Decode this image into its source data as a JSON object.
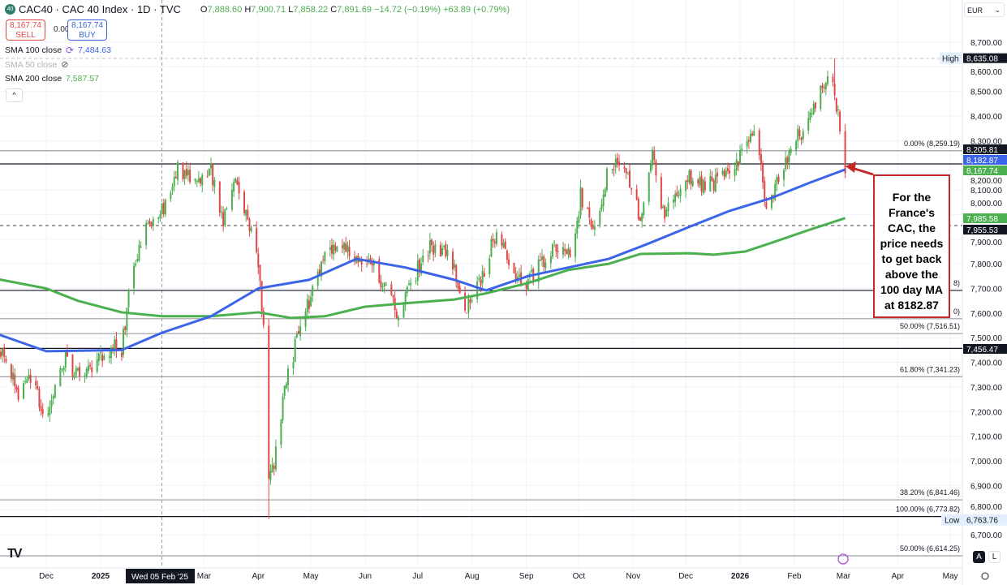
{
  "header": {
    "logo_text": "40",
    "title": "CAC40 · CAC 40 Index · 1D · TVC",
    "open_label": "O",
    "open": "7,888.60",
    "high_label": "H",
    "high": "7,900.71",
    "low_label": "L",
    "low": "7,858.22",
    "close_label": "C",
    "close": "7,891.69",
    "change": "−14.72 (−0.19%)",
    "change2": "+63.89 (+0.79%)"
  },
  "trade": {
    "sell_price": "8,167.74",
    "sell_label": "SELL",
    "spread": "0.00",
    "buy_price": "8,167.74",
    "buy_label": "BUY"
  },
  "indicators": [
    {
      "label": "SMA 100 close",
      "value": "7,484.63",
      "color": "#3c64e8",
      "icon": "sync-icon"
    },
    {
      "label": "SMA 50 close",
      "value": "",
      "color": "#b0b3bb",
      "icon": "eye-hidden-icon"
    },
    {
      "label": "SMA 200 close",
      "value": "7,587.57",
      "color": "#4caf50",
      "icon": ""
    }
  ],
  "collapse_glyph": "^",
  "currency": {
    "label": "EUR",
    "caret": "⌄"
  },
  "annotation": "For the France's CAC, the price needs to get back above the 100 day MA at 8182.87",
  "toolbar": {
    "auto_label": "A",
    "log_label": "L"
  },
  "tv_logo": "TV",
  "crosshair_date": "Wed 05 Feb '25",
  "chart_data": {
    "type": "candlestick",
    "title": "CAC40 · CAC 40 Index · 1D · TVC",
    "ylim": [
      6600,
      8780
    ],
    "grid": true,
    "y_ticks": [
      "8,700.00",
      "8,600.00",
      "8,500.00",
      "8,400.00",
      "8,300.00",
      "8,200.00",
      "8,100.00",
      "8,000.00",
      "7,900.00",
      "7,800.00",
      "7,700.00",
      "7,600.00",
      "7,500.00",
      "7,400.00",
      "7,300.00",
      "7,200.00",
      "7,100.00",
      "7,000.00",
      "6,900.00",
      "6,800.00",
      "6,700.00"
    ],
    "y_tick_values": [
      8700,
      8600,
      8500,
      8400,
      8300,
      8200,
      8100,
      8000,
      7900,
      7800,
      7700,
      7600,
      7500,
      7400,
      7300,
      7200,
      7100,
      7000,
      6900,
      6800,
      6700
    ],
    "x_ticks": [
      {
        "label": "Dec",
        "date": "2024-12-01",
        "bold": false
      },
      {
        "label": "2025",
        "date": "2025-01-01",
        "bold": true
      },
      {
        "label": "Mar",
        "date": "2025-03-01",
        "bold": false
      },
      {
        "label": "Apr",
        "date": "2025-04-01",
        "bold": false
      },
      {
        "label": "May",
        "date": "2025-05-01",
        "bold": false
      },
      {
        "label": "Jun",
        "date": "2025-06-01",
        "bold": false
      },
      {
        "label": "Jul",
        "date": "2025-07-01",
        "bold": false
      },
      {
        "label": "Aug",
        "date": "2025-08-01",
        "bold": false
      },
      {
        "label": "Sep",
        "date": "2025-09-01",
        "bold": false
      },
      {
        "label": "Oct",
        "date": "2025-10-01",
        "bold": false
      },
      {
        "label": "Nov",
        "date": "2025-11-01",
        "bold": false
      },
      {
        "label": "Dec",
        "date": "2025-12-01",
        "bold": false
      },
      {
        "label": "2026",
        "date": "2026-01-01",
        "bold": true
      },
      {
        "label": "Feb",
        "date": "2026-02-01",
        "bold": false
      },
      {
        "label": "Mar",
        "date": "2026-03-01",
        "bold": false
      },
      {
        "label": "Apr",
        "date": "2026-04-01",
        "bold": false
      },
      {
        "label": "May",
        "date": "2026-05-01",
        "bold": false
      }
    ],
    "price_path": [
      [
        "2024-11-05",
        7440
      ],
      [
        "2024-11-16",
        7257
      ],
      [
        "2024-11-23",
        7350
      ],
      [
        "2024-11-30",
        7158
      ],
      [
        "2024-12-05",
        7250
      ],
      [
        "2024-12-12",
        7420
      ],
      [
        "2024-12-21",
        7320
      ],
      [
        "2024-12-30",
        7420
      ],
      [
        "2025-01-08",
        7470
      ],
      [
        "2025-01-13",
        7450
      ],
      [
        "2025-01-18",
        7720
      ],
      [
        "2025-01-25",
        7915
      ],
      [
        "2025-02-05",
        8015
      ],
      [
        "2025-02-14",
        8180
      ],
      [
        "2025-02-24",
        8130
      ],
      [
        "2025-03-05",
        8180
      ],
      [
        "2025-03-12",
        7980
      ],
      [
        "2025-03-19",
        8150
      ],
      [
        "2025-03-26",
        7980
      ],
      [
        "2025-04-01",
        7785
      ],
      [
        "2025-04-04",
        7555
      ],
      [
        "2025-04-07",
        6895
      ],
      [
        "2025-04-11",
        7030
      ],
      [
        "2025-04-16",
        7290
      ],
      [
        "2025-04-23",
        7490
      ],
      [
        "2025-04-30",
        7650
      ],
      [
        "2025-05-09",
        7820
      ],
      [
        "2025-05-16",
        7880
      ],
      [
        "2025-05-27",
        7820
      ],
      [
        "2025-06-06",
        7785
      ],
      [
        "2025-06-13",
        7690
      ],
      [
        "2025-06-20",
        7585
      ],
      [
        "2025-06-29",
        7750
      ],
      [
        "2025-07-08",
        7880
      ],
      [
        "2025-07-20",
        7820
      ],
      [
        "2025-07-29",
        7620
      ],
      [
        "2025-08-05",
        7720
      ],
      [
        "2025-08-16",
        7950
      ],
      [
        "2025-08-23",
        7750
      ],
      [
        "2025-09-02",
        7720
      ],
      [
        "2025-09-11",
        7820
      ],
      [
        "2025-09-20",
        7880
      ],
      [
        "2025-09-27",
        7820
      ],
      [
        "2025-10-02",
        8080
      ],
      [
        "2025-10-11",
        7915
      ],
      [
        "2025-10-18",
        8210
      ],
      [
        "2025-10-27",
        8180
      ],
      [
        "2025-11-05",
        7985
      ],
      [
        "2025-11-12",
        8245
      ],
      [
        "2025-11-19",
        7985
      ],
      [
        "2025-11-26",
        8080
      ],
      [
        "2025-12-03",
        8150
      ],
      [
        "2025-12-13",
        8115
      ],
      [
        "2025-12-22",
        8150
      ],
      [
        "2025-12-31",
        8230
      ],
      [
        "2026-01-09",
        8360
      ],
      [
        "2026-01-16",
        8050
      ],
      [
        "2026-01-23",
        8130
      ],
      [
        "2026-01-30",
        8280
      ],
      [
        "2026-02-08",
        8360
      ],
      [
        "2026-02-15",
        8475
      ],
      [
        "2026-02-22",
        8610
      ],
      [
        "2026-02-26",
        8395
      ],
      [
        "2026-03-02",
        8167.74
      ]
    ],
    "sma100": [
      [
        "2024-11-01",
        7520
      ],
      [
        "2024-12-01",
        7445
      ],
      [
        "2025-01-13",
        7450
      ],
      [
        "2025-02-05",
        7520
      ],
      [
        "2025-03-05",
        7587
      ],
      [
        "2025-04-01",
        7700
      ],
      [
        "2025-04-30",
        7735
      ],
      [
        "2025-05-27",
        7820
      ],
      [
        "2025-06-24",
        7785
      ],
      [
        "2025-07-22",
        7735
      ],
      [
        "2025-08-09",
        7692
      ],
      [
        "2025-09-02",
        7750
      ],
      [
        "2025-09-25",
        7785
      ],
      [
        "2025-10-18",
        7820
      ],
      [
        "2025-11-10",
        7883
      ],
      [
        "2025-12-03",
        7950
      ],
      [
        "2025-12-26",
        8015
      ],
      [
        "2026-01-18",
        8065
      ],
      [
        "2026-02-10",
        8130
      ],
      [
        "2026-03-02",
        8182.87
      ]
    ],
    "sma200": [
      [
        "2024-11-01",
        7741
      ],
      [
        "2024-12-01",
        7700
      ],
      [
        "2024-12-19",
        7650
      ],
      [
        "2025-01-13",
        7603
      ],
      [
        "2025-02-05",
        7587
      ],
      [
        "2025-03-05",
        7587
      ],
      [
        "2025-04-01",
        7603
      ],
      [
        "2025-04-20",
        7580
      ],
      [
        "2025-05-09",
        7587
      ],
      [
        "2025-06-01",
        7626
      ],
      [
        "2025-06-24",
        7640
      ],
      [
        "2025-07-22",
        7655
      ],
      [
        "2025-08-09",
        7680
      ],
      [
        "2025-09-02",
        7722
      ],
      [
        "2025-09-25",
        7775
      ],
      [
        "2025-10-18",
        7800
      ],
      [
        "2025-11-05",
        7840
      ],
      [
        "2025-12-03",
        7843
      ],
      [
        "2025-12-17",
        7837
      ],
      [
        "2026-01-04",
        7850
      ],
      [
        "2026-01-18",
        7883
      ],
      [
        "2026-02-10",
        7939
      ],
      [
        "2026-03-02",
        7985.58
      ]
    ],
    "extremes": {
      "high": {
        "date": "2026-02-24",
        "value": 8635.08,
        "label": "High",
        "price": "8,635.08"
      },
      "low": {
        "date": "2025-04-07",
        "value": 6763.76,
        "label": "Low",
        "price": "6,763.76"
      }
    },
    "levels": [
      {
        "value": 8259.19,
        "style": "gray",
        "label": "0.00% (8,259.19)"
      },
      {
        "value": 8205.81,
        "style": "black",
        "tag": "8,205.81",
        "tag_color": "#131722"
      },
      {
        "value": 7955.53,
        "style": "dashed",
        "tag": "7,955.53",
        "tag_color": "#131722"
      },
      {
        "value": 7692,
        "style": "black",
        "label": "8)"
      },
      {
        "value": 7577,
        "style": "gray",
        "label": "0)"
      },
      {
        "value": 7516.51,
        "style": "gray",
        "label": "50.00% (7,516.51)"
      },
      {
        "value": 7456.47,
        "style": "black",
        "tag": "7,456.47",
        "tag_color": "#131722"
      },
      {
        "value": 7341.23,
        "style": "gray",
        "label": "61.80% (7,341.23)"
      },
      {
        "value": 6841.46,
        "style": "gray",
        "label": "38.20% (6,841.46)"
      },
      {
        "value": 6773.82,
        "style": "black",
        "label": "100.00% (6,773.82)"
      },
      {
        "value": 6614.25,
        "style": "gray",
        "label": "50.00% (6,614.25)"
      }
    ],
    "price_tags": [
      {
        "value": 8182.87,
        "label": "8,182.87",
        "color": "#3c64e8"
      },
      {
        "value": 8167.74,
        "label": "8,167.74",
        "color": "#4caf50"
      },
      {
        "value": 7985.58,
        "label": "7,985.58",
        "color": "#4caf50"
      }
    ],
    "colors": {
      "up": "#4caf50",
      "down": "#e04848",
      "sma100": "#3c64e8",
      "sma200": "#4caf50",
      "annotation": "#c62828"
    }
  }
}
